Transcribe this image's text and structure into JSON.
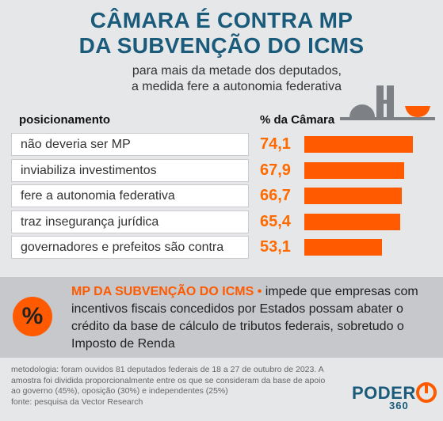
{
  "header": {
    "title_line1": "CÂMARA É CONTRA MP",
    "title_line2": "DA SUBVENÇÃO DO ICMS",
    "subtitle_line1": "para mais da metade dos deputados,",
    "subtitle_line2": "a medida fere a autonomia federativa"
  },
  "chart_data": {
    "type": "bar",
    "orientation": "horizontal",
    "column_headers": [
      "posicionamento",
      "% da Câmara"
    ],
    "categories": [
      "não deveria ser MP",
      "inviabiliza investimentos",
      "fere a autonomia federativa",
      "traz insegurança jurídica",
      "governadores e prefeitos são contra"
    ],
    "values": [
      74.1,
      67.9,
      66.7,
      65.4,
      53.1
    ],
    "value_labels": [
      "74,1",
      "67,9",
      "66,7",
      "65,4",
      "53,1"
    ],
    "ylim": [
      0,
      100
    ],
    "bar_color": "#ff5a00"
  },
  "info": {
    "icon": "percent-icon",
    "symbol": "%",
    "highlight": "MP DA SUBVENÇÃO DO ICMS •",
    "text": " impede que empresas com incentivos fiscais concedidos por Estados possam abater o crédito da base de cálculo de tributos federais, sobretudo o Imposto de Renda"
  },
  "footer": {
    "methodology": "metodologia: foram ouvidos 81 deputados federais de 18 a 27 de outubro de 2023. A amostra foi dividida proporcionalmente entre os que se consideram da base de apoio ao governo (45%), oposição (30%) e independentes (25%)",
    "source": "fonte: pesquisa da Vector Research",
    "logo_word": "PODER",
    "logo_number": "360"
  },
  "colors": {
    "title": "#1a5a7a",
    "accent": "#ff5a00",
    "background": "#e6e7e8"
  }
}
